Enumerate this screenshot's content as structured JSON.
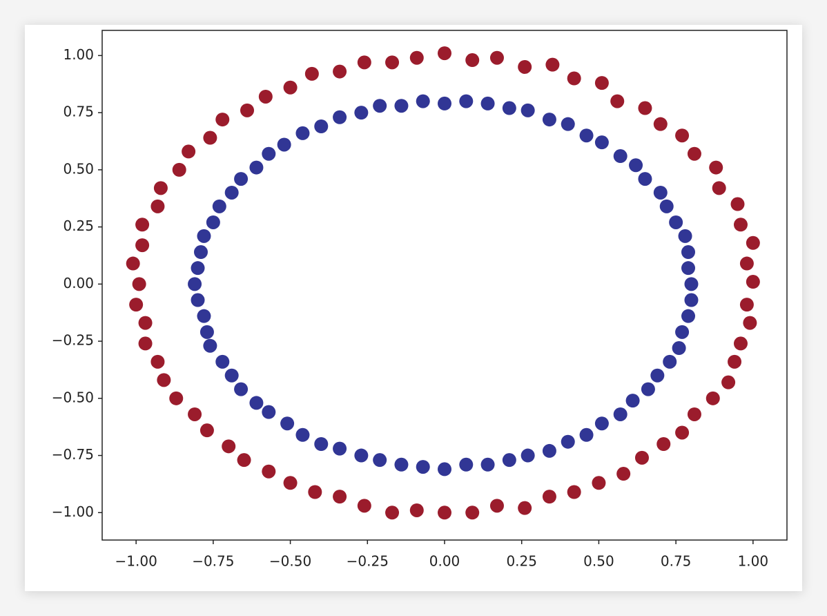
{
  "chart_data": {
    "type": "scatter",
    "xlim": [
      -1.11,
      1.11
    ],
    "ylim": [
      -1.12,
      1.11
    ],
    "xticks": [
      {
        "value": -1,
        "label": "−1.00"
      },
      {
        "value": -0.75,
        "label": "−0.75"
      },
      {
        "value": -0.5,
        "label": "−0.50"
      },
      {
        "value": -0.25,
        "label": "−0.25"
      },
      {
        "value": 0,
        "label": "0.00"
      },
      {
        "value": 0.25,
        "label": "0.25"
      },
      {
        "value": 0.5,
        "label": "0.50"
      },
      {
        "value": 0.75,
        "label": "0.75"
      },
      {
        "value": 1,
        "label": "1.00"
      }
    ],
    "yticks": [
      {
        "value": -1,
        "label": "−1.00"
      },
      {
        "value": -0.75,
        "label": "−0.75"
      },
      {
        "value": -0.5,
        "label": "−0.50"
      },
      {
        "value": -0.25,
        "label": "−0.25"
      },
      {
        "value": 0,
        "label": "0.00"
      },
      {
        "value": 0.25,
        "label": "0.25"
      },
      {
        "value": 0.5,
        "label": "0.50"
      },
      {
        "value": 0.75,
        "label": "0.75"
      },
      {
        "value": 1,
        "label": "1.00"
      }
    ],
    "series": [
      {
        "color": "#9b1c2c",
        "x": [
          1.0,
          0.98,
          1.0,
          0.96,
          0.95,
          0.89,
          0.88,
          0.81,
          0.77,
          0.7,
          0.65,
          0.56,
          0.51,
          0.42,
          0.35,
          0.26,
          0.17,
          0.09,
          0.0,
          -0.09,
          -0.17,
          -0.26,
          -0.34,
          -0.43,
          -0.5,
          -0.58,
          -0.64,
          -0.72,
          -0.76,
          -0.83,
          -0.86,
          -0.92,
          -0.93,
          -0.98,
          -0.98,
          -1.01,
          -0.99,
          -1.0,
          -0.97,
          -0.97,
          -0.93,
          -0.91,
          -0.87,
          -0.81,
          -0.77,
          -0.7,
          -0.65,
          -0.57,
          -0.5,
          -0.42,
          -0.34,
          -0.26,
          -0.17,
          -0.09,
          0.0,
          0.09,
          0.17,
          0.26,
          0.34,
          0.42,
          0.5,
          0.58,
          0.64,
          0.71,
          0.77,
          0.81,
          0.87,
          0.92,
          0.94,
          0.96,
          0.99,
          0.98
        ],
        "y": [
          0.01,
          0.09,
          0.18,
          0.26,
          0.35,
          0.42,
          0.51,
          0.57,
          0.65,
          0.7,
          0.77,
          0.8,
          0.88,
          0.9,
          0.96,
          0.95,
          0.99,
          0.98,
          1.01,
          0.99,
          0.97,
          0.97,
          0.93,
          0.92,
          0.86,
          0.82,
          0.76,
          0.72,
          0.64,
          0.58,
          0.5,
          0.42,
          0.34,
          0.26,
          0.17,
          0.09,
          0.0,
          -0.09,
          -0.17,
          -0.26,
          -0.34,
          -0.42,
          -0.5,
          -0.57,
          -0.64,
          -0.71,
          -0.77,
          -0.82,
          -0.87,
          -0.91,
          -0.93,
          -0.97,
          -1.0,
          -0.99,
          -1.0,
          -1.0,
          -0.97,
          -0.98,
          -0.93,
          -0.91,
          -0.87,
          -0.83,
          -0.76,
          -0.7,
          -0.65,
          -0.57,
          -0.5,
          -0.43,
          -0.34,
          -0.26,
          -0.17,
          -0.09
        ]
      },
      {
        "color": "#313695",
        "x": [
          0.8,
          0.79,
          0.79,
          0.78,
          0.75,
          0.72,
          0.7,
          0.65,
          0.62,
          0.57,
          0.51,
          0.46,
          0.4,
          0.34,
          0.27,
          0.21,
          0.14,
          0.07,
          0.0,
          -0.07,
          -0.14,
          -0.21,
          -0.27,
          -0.34,
          -0.4,
          -0.46,
          -0.52,
          -0.57,
          -0.61,
          -0.66,
          -0.69,
          -0.73,
          -0.75,
          -0.78,
          -0.79,
          -0.8,
          -0.81,
          -0.8,
          -0.78,
          -0.77,
          -0.76,
          -0.72,
          -0.69,
          -0.66,
          -0.61,
          -0.57,
          -0.51,
          -0.46,
          -0.4,
          -0.34,
          -0.27,
          -0.21,
          -0.14,
          -0.07,
          0.0,
          0.07,
          0.14,
          0.21,
          0.27,
          0.34,
          0.4,
          0.46,
          0.51,
          0.57,
          0.61,
          0.66,
          0.69,
          0.73,
          0.76,
          0.77,
          0.79,
          0.8
        ],
        "y": [
          0.0,
          0.07,
          0.14,
          0.21,
          0.27,
          0.34,
          0.4,
          0.46,
          0.52,
          0.56,
          0.62,
          0.65,
          0.7,
          0.72,
          0.76,
          0.77,
          0.79,
          0.8,
          0.79,
          0.8,
          0.78,
          0.78,
          0.75,
          0.73,
          0.69,
          0.66,
          0.61,
          0.57,
          0.51,
          0.46,
          0.4,
          0.34,
          0.27,
          0.21,
          0.14,
          0.07,
          0.0,
          -0.07,
          -0.14,
          -0.21,
          -0.27,
          -0.34,
          -0.4,
          -0.46,
          -0.52,
          -0.56,
          -0.61,
          -0.66,
          -0.7,
          -0.72,
          -0.75,
          -0.77,
          -0.79,
          -0.8,
          -0.81,
          -0.79,
          -0.79,
          -0.77,
          -0.75,
          -0.73,
          -0.69,
          -0.66,
          -0.61,
          -0.57,
          -0.51,
          -0.46,
          -0.4,
          -0.34,
          -0.28,
          -0.21,
          -0.14,
          -0.07
        ]
      }
    ]
  }
}
